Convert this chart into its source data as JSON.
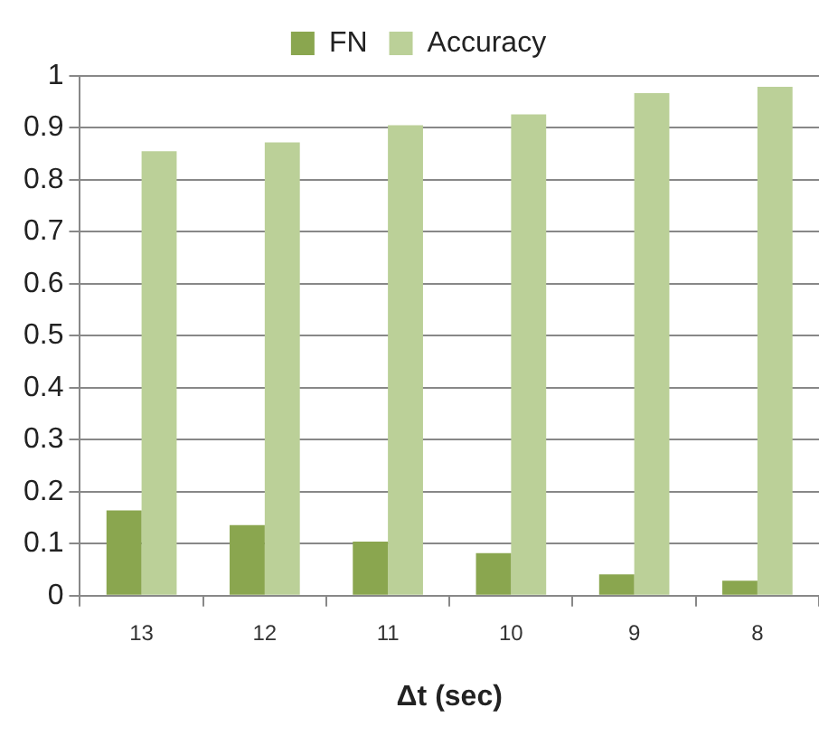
{
  "chart_data": {
    "type": "bar",
    "xlabel": "Δt (sec)",
    "categories": [
      "13",
      "12",
      "11",
      "10",
      "9",
      "8"
    ],
    "series": [
      {
        "name": "FN",
        "color": "#8aa64f",
        "values": [
          0.164,
          0.136,
          0.104,
          0.082,
          0.041,
          0.029
        ]
      },
      {
        "name": "Accuracy",
        "color": "#bbd098",
        "values": [
          0.855,
          0.872,
          0.905,
          0.926,
          0.967,
          0.979
        ]
      }
    ],
    "ylim": [
      0,
      1
    ],
    "yticks": [
      0,
      0.1,
      0.2,
      0.3,
      0.4,
      0.5,
      0.6,
      0.7,
      0.8,
      0.9,
      1
    ],
    "grid": "y",
    "legend": "top"
  }
}
